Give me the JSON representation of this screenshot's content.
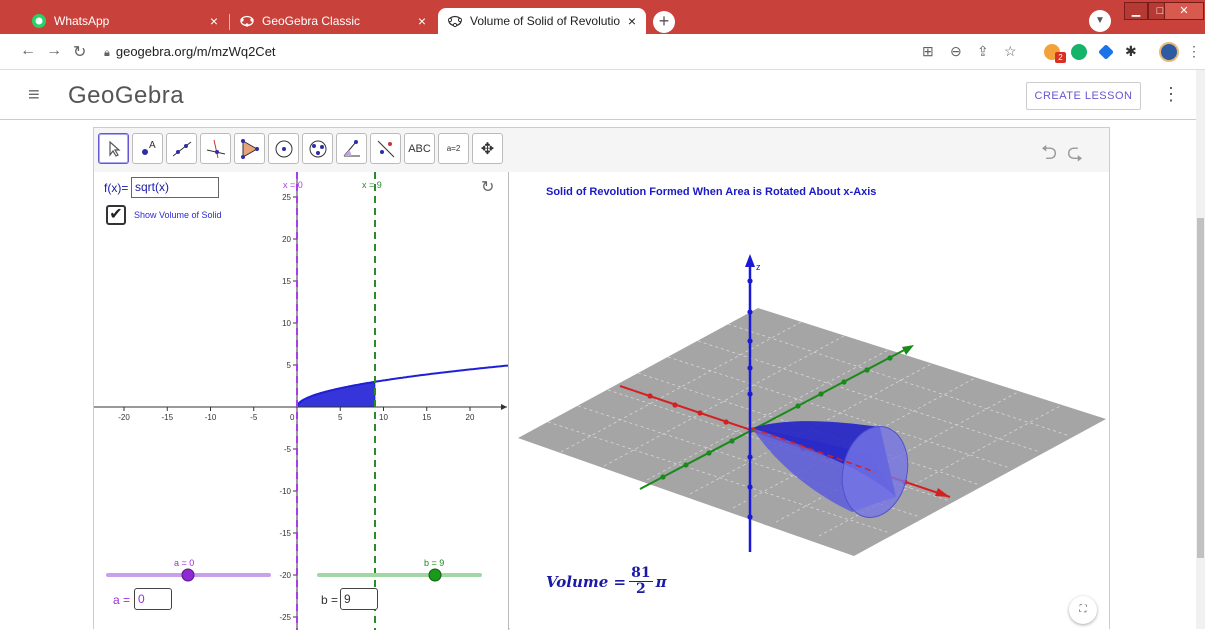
{
  "browser": {
    "tabs": [
      {
        "title": "WhatsApp",
        "close": "×"
      },
      {
        "title": "GeoGebra Classic",
        "close": "×"
      },
      {
        "title": "Volume of Solid of Revolution ab",
        "close": "×"
      }
    ],
    "new_tab": "+",
    "url": "geogebra.org/m/mzWq2Cet",
    "extension_badge": "2",
    "window_controls": {
      "minimize": "▁",
      "maximize": "□",
      "close": "✕"
    }
  },
  "page": {
    "logo": "GeoGebra",
    "create_lesson": "CREATE LESSON"
  },
  "applet": {
    "tools": [
      "pointer",
      "point",
      "line",
      "perpendicular",
      "polygon",
      "circle",
      "conic",
      "angle",
      "reflect",
      "text",
      "slider",
      "move-view"
    ],
    "text_tool": "ABC",
    "slider_tool": "a=2",
    "graphics": {
      "fx_label": "f(x)=",
      "fx_value": "sqrt(x)",
      "checkbox_label": "Show Volume of Solid",
      "line_a_label": "x = 0",
      "line_b_label": "x = 9",
      "slider_a": {
        "label": "a = 0",
        "input_label": "a =",
        "value": "0",
        "color": "#9b30d9"
      },
      "slider_b": {
        "label": "b = 9",
        "input_label": "b =",
        "value": "9",
        "color": "#1a8a1a"
      },
      "x_ticks": [
        "-20",
        "-15",
        "-10",
        "-5",
        "0",
        "5",
        "10",
        "15",
        "20"
      ],
      "y_ticks": [
        "25",
        "20",
        "15",
        "10",
        "5",
        "-5",
        "-10",
        "-15",
        "-20",
        "-25"
      ]
    },
    "view3d": {
      "title": "Solid of Revolution Formed When Area is Rotated About x-Axis",
      "z_label": "z",
      "volume_lhs": "Volume =",
      "volume_num": "81",
      "volume_den": "2",
      "volume_pi": "π"
    }
  },
  "colors": {
    "accent": "#6557d2",
    "area": "#1f1fd6",
    "red_axis": "#d42020",
    "green_axis": "#1a8a1a"
  }
}
